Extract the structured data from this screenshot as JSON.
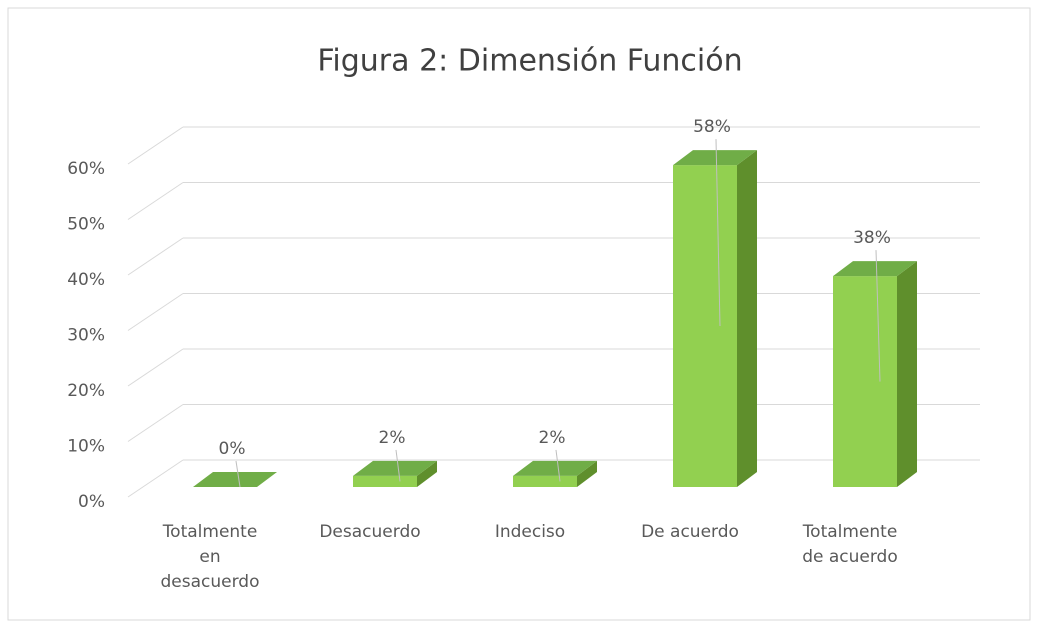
{
  "chart_data": {
    "type": "bar3d",
    "title": "Figura 2: Dimensión Función",
    "categories": [
      "Totalmente en desacuerdo",
      "Desacuerdo",
      "Indeciso",
      "De acuerdo",
      "Totalmente de acuerdo"
    ],
    "values": [
      0,
      2,
      2,
      58,
      38
    ],
    "value_labels": [
      "0%",
      "2%",
      "2%",
      "58%",
      "38%"
    ],
    "color": "#92d050",
    "ylim": [
      0,
      60
    ],
    "yticks": [
      {
        "value": 0,
        "label": "0%"
      },
      {
        "value": 10,
        "label": "10%"
      },
      {
        "value": 20,
        "label": "20%"
      },
      {
        "value": 30,
        "label": "30%"
      },
      {
        "value": 40,
        "label": "40%"
      },
      {
        "value": 50,
        "label": "50%"
      },
      {
        "value": 60,
        "label": "60%"
      }
    ],
    "grid": true
  }
}
